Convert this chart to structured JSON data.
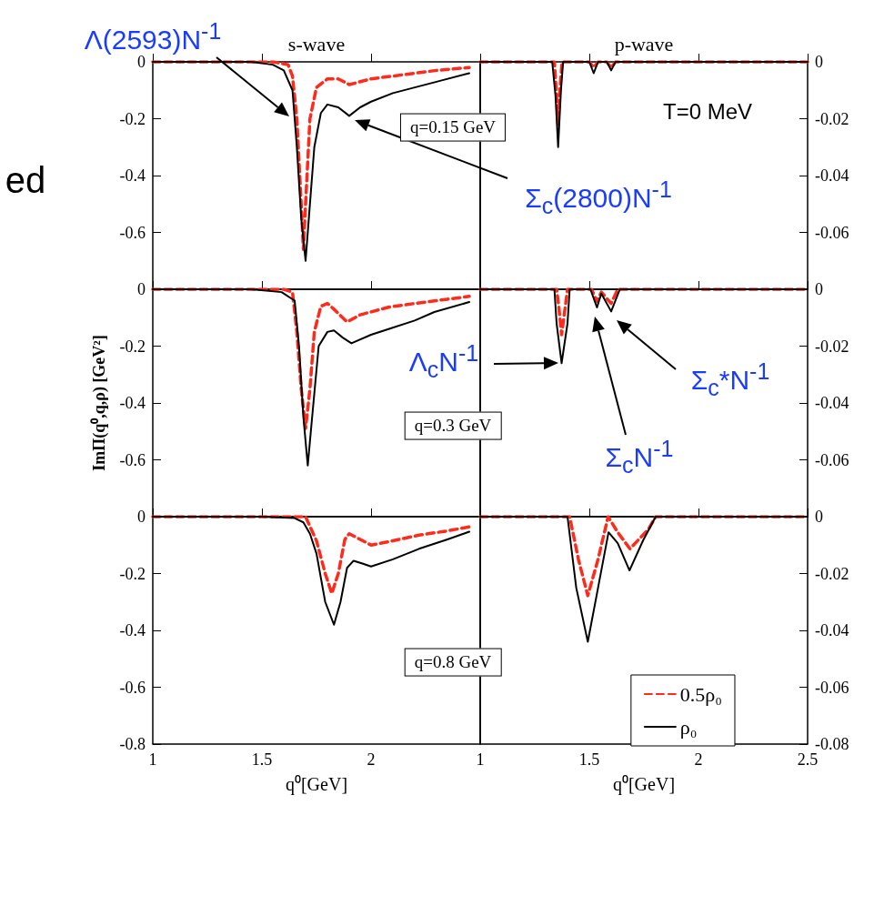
{
  "chart_data": [
    {
      "type": "line",
      "title": "s-wave",
      "xlim": [
        1,
        2.5
      ],
      "xticks": [
        {
          "value": 1,
          "label": null
        },
        {
          "value": 1.5,
          "label": null
        },
        {
          "value": 2,
          "label": null
        },
        {
          "value": 2.5,
          "label": null
        }
      ],
      "ylim": [
        -0.8,
        0
      ],
      "yticks": [
        0,
        -0.2,
        -0.4,
        -0.6
      ],
      "tick_labels": "y",
      "marker": "none",
      "annotations": [
        "ed",
        "Λ(2593)N$^{-1}$",
        "Σ$_{c}$(2800)N$^{-1}$",
        "q=0.15 GeV"
      ],
      "series": [
        {
          "color": "#ff2a1a",
          "line_style": "dashed",
          "x": [
            1,
            1.55,
            1.62,
            1.64,
            1.66,
            1.68,
            1.69,
            1.7,
            1.72,
            1.75,
            1.8,
            1.85,
            1.9,
            2.0,
            2.1,
            2.2,
            2.3,
            2.45
          ],
          "values": [
            0,
            0,
            -0.01,
            -0.05,
            -0.2,
            -0.5,
            -0.66,
            -0.5,
            -0.2,
            -0.09,
            -0.06,
            -0.06,
            -0.08,
            -0.06,
            -0.05,
            -0.04,
            -0.03,
            -0.02
          ]
        },
        {
          "color": "#000000",
          "line_style": "solid",
          "x": [
            1,
            1.45,
            1.55,
            1.6,
            1.64,
            1.66,
            1.68,
            1.7,
            1.72,
            1.74,
            1.77,
            1.8,
            1.85,
            1.9,
            1.95,
            2.0,
            2.1,
            2.2,
            2.3,
            2.45
          ],
          "values": [
            0,
            0,
            -0.01,
            -0.03,
            -0.1,
            -0.3,
            -0.55,
            -0.7,
            -0.5,
            -0.3,
            -0.18,
            -0.15,
            -0.16,
            -0.19,
            -0.16,
            -0.14,
            -0.11,
            -0.09,
            -0.07,
            -0.04
          ]
        }
      ]
    },
    {
      "type": "line",
      "title": "p-wave",
      "xlim": [
        1,
        2.5
      ],
      "xticks": [
        {
          "value": 1,
          "label": null
        },
        {
          "value": 1.5,
          "label": null
        },
        {
          "value": 2,
          "label": null
        },
        {
          "value": 2.5,
          "label": null
        }
      ],
      "ylim": [
        -0.08,
        0
      ],
      "yticks": [
        0,
        -0.02,
        -0.04,
        -0.06
      ],
      "tick_labels": "y",
      "marker": "none",
      "annotations": [
        "T=0 MeV"
      ],
      "series": [
        {
          "color": "#ff2a1a",
          "line_style": "dashed",
          "x": [
            1,
            1.34,
            1.35,
            1.357,
            1.365,
            1.375,
            1.5,
            1.52,
            1.54,
            1.58,
            1.6,
            1.62,
            2.5
          ],
          "values": [
            0,
            0,
            -0.012,
            -0.022,
            -0.01,
            0,
            0,
            -0.002,
            0,
            0,
            -0.002,
            0,
            0
          ]
        },
        {
          "color": "#000000",
          "line_style": "solid",
          "x": [
            1,
            1.33,
            1.345,
            1.357,
            1.37,
            1.38,
            1.5,
            1.52,
            1.54,
            1.58,
            1.6,
            1.62,
            2.5
          ],
          "values": [
            0,
            0,
            -0.012,
            -0.03,
            -0.01,
            0,
            0,
            -0.004,
            0,
            0,
            -0.003,
            0,
            0
          ]
        }
      ]
    },
    {
      "type": "line",
      "ylabel": "ImΠ(q⁰,q,ρ) [GeV²]",
      "xlim": [
        1,
        2.5
      ],
      "xticks": [
        {
          "value": 1,
          "label": null
        },
        {
          "value": 1.5,
          "label": null
        },
        {
          "value": 2,
          "label": null
        },
        {
          "value": 2.5,
          "label": null
        }
      ],
      "ylim": [
        -0.8,
        0
      ],
      "yticks": [
        0,
        -0.2,
        -0.4,
        -0.6
      ],
      "tick_labels": "y",
      "marker": "none",
      "annotations": [
        "q=0.3 GeV"
      ],
      "series": [
        {
          "color": "#ff2a1a",
          "line_style": "dashed",
          "x": [
            1,
            1.6,
            1.64,
            1.66,
            1.68,
            1.7,
            1.72,
            1.74,
            1.77,
            1.8,
            1.83,
            1.89,
            1.95,
            2.08,
            2.2,
            2.35,
            2.45
          ],
          "values": [
            0,
            0,
            -0.01,
            -0.15,
            -0.35,
            -0.49,
            -0.35,
            -0.15,
            -0.06,
            -0.05,
            -0.07,
            -0.115,
            -0.09,
            -0.063,
            -0.05,
            -0.035,
            -0.025
          ]
        },
        {
          "color": "#000000",
          "line_style": "solid",
          "x": [
            1,
            1.45,
            1.59,
            1.65,
            1.67,
            1.69,
            1.71,
            1.73,
            1.76,
            1.8,
            1.83,
            1.87,
            1.91,
            2.0,
            2.08,
            2.2,
            2.29,
            2.45
          ],
          "values": [
            0,
            0,
            -0.01,
            -0.04,
            -0.2,
            -0.45,
            -0.62,
            -0.45,
            -0.2,
            -0.15,
            -0.145,
            -0.17,
            -0.19,
            -0.16,
            -0.14,
            -0.11,
            -0.08,
            -0.045
          ]
        }
      ]
    },
    {
      "type": "line",
      "xlim": [
        1,
        2.5
      ],
      "xticks": [
        {
          "value": 1,
          "label": null
        },
        {
          "value": 1.5,
          "label": null
        },
        {
          "value": 2,
          "label": null
        },
        {
          "value": 2.5,
          "label": null
        }
      ],
      "ylim": [
        -0.08,
        0
      ],
      "yticks": [
        0,
        -0.02,
        -0.04,
        -0.06
      ],
      "tick_labels": "y",
      "marker": "none",
      "annotations": [
        "Λ$_{c}$N$^{-1}$",
        "Σ$_{c}$N$^{-1}$",
        "Σ$_{c}$*N$^{-1}$"
      ],
      "series": [
        {
          "color": "#ff2a1a",
          "line_style": "dashed",
          "x": [
            1,
            1.35,
            1.36,
            1.373,
            1.39,
            1.4,
            1.51,
            1.535,
            1.555,
            1.6,
            1.63,
            2.5
          ],
          "values": [
            0,
            0,
            -0.006,
            -0.016,
            -0.006,
            0,
            0,
            -0.0043,
            -0.001,
            -0.005,
            0,
            0
          ]
        },
        {
          "color": "#000000",
          "line_style": "solid",
          "x": [
            1,
            1.34,
            1.35,
            1.373,
            1.4,
            1.41,
            1.505,
            1.535,
            1.555,
            1.6,
            1.64,
            2.5
          ],
          "values": [
            0,
            0,
            -0.012,
            -0.026,
            -0.012,
            0,
            0,
            -0.0064,
            -0.0015,
            -0.0078,
            0,
            0
          ]
        }
      ]
    },
    {
      "type": "line",
      "xlabel": "q⁰[GeV]",
      "xlim": [
        1,
        2.5
      ],
      "xticks": [
        1,
        1.5,
        2,
        {
          "value": 2.5,
          "label": null
        }
      ],
      "ylim": [
        -0.8,
        0
      ],
      "yticks": [
        0,
        -0.2,
        -0.4,
        -0.6,
        -0.8
      ],
      "marker": "none",
      "annotations": [
        "q=0.8 GeV"
      ],
      "series": [
        {
          "color": "#ff2a1a",
          "line_style": "dashed",
          "x": [
            1,
            1.7,
            1.75,
            1.79,
            1.82,
            1.85,
            1.88,
            1.9,
            1.95,
            2.0,
            2.1,
            2.22,
            2.35,
            2.45
          ],
          "values": [
            0,
            0,
            -0.085,
            -0.2,
            -0.27,
            -0.2,
            -0.08,
            -0.06,
            -0.08,
            -0.1,
            -0.085,
            -0.065,
            -0.05,
            -0.036
          ]
        },
        {
          "color": "#000000",
          "line_style": "solid",
          "x": [
            1,
            1.5,
            1.65,
            1.69,
            1.72,
            1.75,
            1.79,
            1.83,
            1.86,
            1.89,
            1.92,
            1.96,
            2.0,
            2.1,
            2.22,
            2.35,
            2.45
          ],
          "values": [
            0,
            0,
            -0.005,
            -0.02,
            -0.06,
            -0.13,
            -0.3,
            -0.38,
            -0.3,
            -0.18,
            -0.155,
            -0.165,
            -0.175,
            -0.15,
            -0.113,
            -0.08,
            -0.053
          ]
        }
      ]
    },
    {
      "type": "line",
      "xlabel": "q⁰[GeV]",
      "xlim": [
        1,
        2.5
      ],
      "xticks": [
        1,
        1.5,
        2,
        2.5
      ],
      "ylim": [
        -0.08,
        0
      ],
      "yticks": [
        0,
        -0.02,
        -0.04,
        -0.06,
        -0.08
      ],
      "marker": "none",
      "legend": "bottom right",
      "series": [
        {
          "name": "0.5ρ₀",
          "color": "#ff2a1a",
          "line_style": "dashed",
          "x": [
            1,
            1.41,
            1.45,
            1.493,
            1.54,
            1.586,
            1.63,
            1.686,
            1.77,
            1.804,
            2.5
          ],
          "values": [
            0,
            0,
            -0.015,
            -0.0278,
            -0.015,
            0,
            -0.0055,
            -0.0113,
            -0.0045,
            0,
            0
          ]
        },
        {
          "name": "ρ₀",
          "color": "#000000",
          "line_style": "solid",
          "x": [
            1,
            1.4,
            1.44,
            1.493,
            1.54,
            1.588,
            1.63,
            1.684,
            1.746,
            1.804,
            2.5
          ],
          "values": [
            0,
            0,
            -0.025,
            -0.044,
            -0.025,
            -0.0055,
            -0.0093,
            -0.0189,
            -0.0084,
            0,
            0
          ]
        }
      ]
    }
  ]
}
